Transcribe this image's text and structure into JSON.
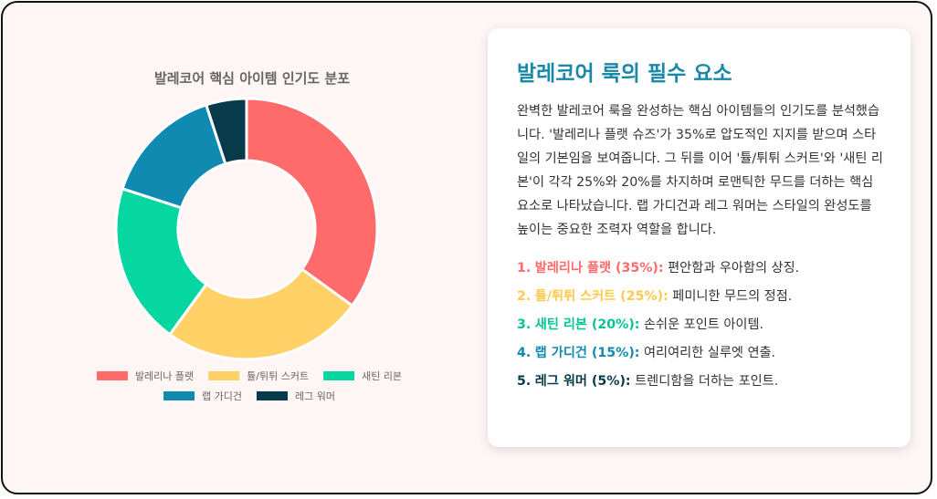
{
  "chart_data": {
    "type": "pie",
    "subtype": "doughnut",
    "title": "발레코어 핵심 아이템 인기도 분포",
    "legend_position": "bottom",
    "categories": [
      "발레리나 플랫",
      "튤/튀튀 스커트",
      "새틴 리본",
      "랩 가디건",
      "레그 워머"
    ],
    "values": [
      35,
      25,
      20,
      15,
      5
    ],
    "colors": [
      "#ff6b6b",
      "#ffd166",
      "#06d6a0",
      "#118ab2",
      "#073b4c"
    ]
  },
  "card": {
    "title": "발레코어 룩의 필수 요소",
    "description": "완벽한 발레코어 룩을 완성하는 핵심 아이템들의 인기도를 분석했습니다. '발레리나 플랫 슈즈'가 35%로 압도적인 지지를 받으며 스타일의 기본임을 보여줍니다. 그 뒤를 이어 '튤/튀튀 스커트'와 '새틴 리본'이 각각 25%와 20%를 차지하며 로맨틱한 무드를 더하는 핵심 요소로 나타났습니다. 랩 가디건과 레그 워머는 스타일의 완성도를 높이는 중요한 조력자 역할을 합니다.",
    "items": [
      {
        "num": "1.",
        "name": "발레리나 플랫 (35%):",
        "desc": "편안함과 우아함의 상징.",
        "color": "#ff6b6b"
      },
      {
        "num": "2.",
        "name": "튤/튀튀 스커트 (25%):",
        "desc": "페미니한 무드의 정점.",
        "color": "#ffc94d"
      },
      {
        "num": "3.",
        "name": "새틴 리본 (20%):",
        "desc": "손쉬운 포인트 아이템.",
        "color": "#06c494"
      },
      {
        "num": "4.",
        "name": "랩 가디건 (15%):",
        "desc": "여리여리한 실루엣 연출.",
        "color": "#118ab2"
      },
      {
        "num": "5.",
        "name": "레그 워머 (5%):",
        "desc": "트렌디함을 더하는 포인트.",
        "color": "#073b4c"
      }
    ]
  }
}
